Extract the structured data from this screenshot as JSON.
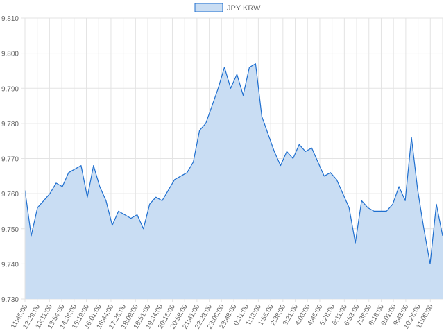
{
  "chart_data": {
    "type": "area",
    "title": "",
    "xlabel": "",
    "ylabel": "",
    "legend": {
      "position": "top-center",
      "entries": [
        "JPY KRW"
      ]
    },
    "grid": true,
    "ylim": [
      9.73,
      9.81
    ],
    "y_ticks": [
      "9.730",
      "9.740",
      "9.750",
      "9.760",
      "9.770",
      "9.780",
      "9.790",
      "9.800",
      "9.810"
    ],
    "x_ticks": [
      "11:46:00",
      "12:29:00",
      "13:11:00",
      "13:54:00",
      "14:36:00",
      "15:19:00",
      "16:01:00",
      "16:44:00",
      "17:26:00",
      "18:09:00",
      "18:51:00",
      "19:34:00",
      "20:16:00",
      "20:58:00",
      "21:41:00",
      "22:23:00",
      "23:06:00",
      "23:48:00",
      "0:31:00",
      "1:13:00",
      "1:56:00",
      "2:38:00",
      "3:21:00",
      "4:03:00",
      "4:46:00",
      "5:28:00",
      "6:11:00",
      "6:53:00",
      "7:36:00",
      "8:18:00",
      "9:01:00",
      "9:43:00",
      "10:26:00",
      "11:08:00"
    ],
    "colors": {
      "line": "#1f6fcf",
      "fill": "#c9ddf3",
      "grid": "#e3e3e3"
    },
    "series": [
      {
        "name": "JPY KRW",
        "x": [
          "11:46:00",
          "12:07:00",
          "12:29:00",
          "12:50:00",
          "13:11:00",
          "13:32:00",
          "13:54:00",
          "14:15:00",
          "14:36:00",
          "14:57:00",
          "15:19:00",
          "15:40:00",
          "16:01:00",
          "16:22:00",
          "16:44:00",
          "17:05:00",
          "17:26:00",
          "17:47:00",
          "18:09:00",
          "18:30:00",
          "18:51:00",
          "19:12:00",
          "19:34:00",
          "19:55:00",
          "20:16:00",
          "20:37:00",
          "20:58:00",
          "21:19:00",
          "21:41:00",
          "22:02:00",
          "22:23:00",
          "22:44:00",
          "23:06:00",
          "23:27:00",
          "23:48:00",
          "0:09:00",
          "0:31:00",
          "0:52:00",
          "1:13:00",
          "1:34:00",
          "1:56:00",
          "2:17:00",
          "2:38:00",
          "2:59:00",
          "3:21:00",
          "3:42:00",
          "4:03:00",
          "4:24:00",
          "4:46:00",
          "5:07:00",
          "5:28:00",
          "5:49:00",
          "6:11:00",
          "6:32:00",
          "6:53:00",
          "7:14:00",
          "7:36:00",
          "7:57:00",
          "8:18:00",
          "8:39:00",
          "9:01:00",
          "9:22:00",
          "9:43:00",
          "10:04:00",
          "10:26:00",
          "10:47:00",
          "11:08:00",
          "11:29:00"
        ],
        "values": [
          9.761,
          9.748,
          9.756,
          9.758,
          9.76,
          9.763,
          9.762,
          9.766,
          9.767,
          9.768,
          9.759,
          9.768,
          9.762,
          9.758,
          9.751,
          9.755,
          9.754,
          9.753,
          9.754,
          9.75,
          9.757,
          9.759,
          9.758,
          9.761,
          9.764,
          9.765,
          9.766,
          9.769,
          9.778,
          9.78,
          9.785,
          9.79,
          9.796,
          9.79,
          9.794,
          9.788,
          9.796,
          9.797,
          9.782,
          9.777,
          9.772,
          9.768,
          9.772,
          9.77,
          9.774,
          9.772,
          9.773,
          9.769,
          9.765,
          9.766,
          9.764,
          9.76,
          9.756,
          9.746,
          9.758,
          9.756,
          9.755,
          9.755,
          9.755,
          9.757,
          9.762,
          9.758,
          9.776,
          9.761,
          9.75,
          9.74,
          9.757,
          9.748
        ]
      }
    ]
  }
}
